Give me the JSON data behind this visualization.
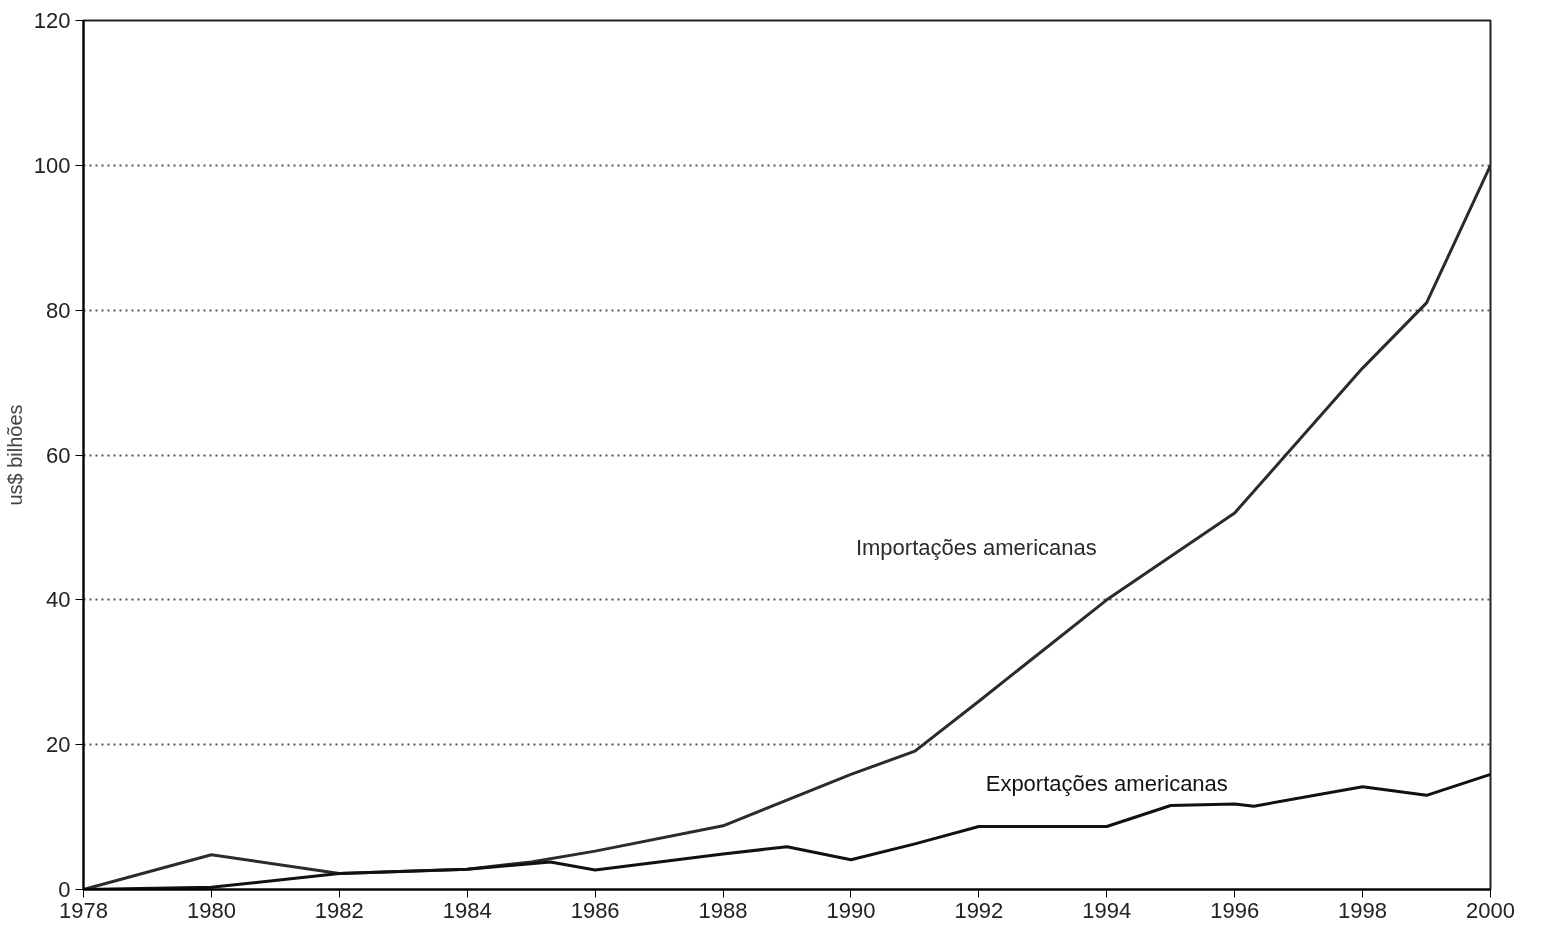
{
  "chart_data": {
    "type": "line",
    "ylabel": "us$ bilhões",
    "xlim": [
      1978,
      2000
    ],
    "ylim": [
      0,
      120
    ],
    "xticks": [
      1978,
      1980,
      1982,
      1984,
      1986,
      1988,
      1990,
      1992,
      1994,
      1996,
      1998,
      2000
    ],
    "yticks": [
      0,
      20,
      40,
      60,
      80,
      100,
      120
    ],
    "grid": "y",
    "line_style": "solid",
    "marker": "none",
    "series": [
      {
        "name": "Importações americanas",
        "color": "#2b2b2b",
        "x": [
          1978,
          1980,
          1982,
          1984,
          1985,
          1986,
          1988,
          1990,
          1991,
          1992,
          1994,
          1996,
          1998,
          1999,
          2000
        ],
        "values": [
          0,
          4.8,
          2.2,
          2.8,
          3.8,
          5.3,
          8.8,
          15.9,
          19.1,
          26,
          40,
          52,
          72,
          81,
          100
        ]
      },
      {
        "name": "Exportações americanas",
        "color": "#111111",
        "x": [
          1978,
          1980,
          1982,
          1984,
          1985.3,
          1986,
          1988,
          1989,
          1990,
          1991,
          1992,
          1994,
          1995,
          1996,
          1996.3,
          1998,
          1999,
          2000
        ],
        "values": [
          0,
          0.3,
          2.2,
          2.8,
          3.8,
          2.7,
          4.9,
          5.9,
          4.1,
          6.3,
          8.7,
          8.7,
          11.6,
          11.8,
          11.5,
          14.2,
          13,
          15.9
        ]
      }
    ]
  }
}
